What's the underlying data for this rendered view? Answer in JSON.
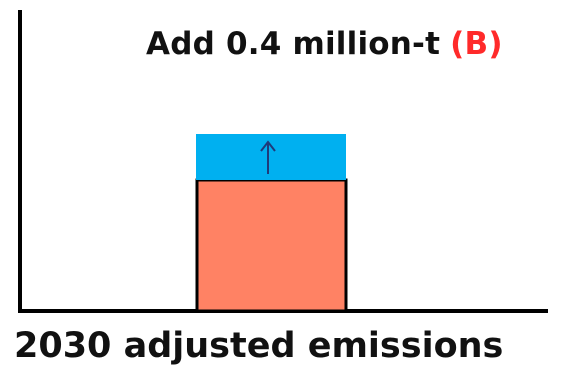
{
  "annotation": {
    "text": "Add 0.4 million-t",
    "marker": "(B)",
    "marker_color": "#ff2a2a"
  },
  "caption": "2030 adjusted emissions",
  "bars": {
    "base_color": "#ff8264",
    "addition_color": "#00b0f0",
    "arrow_icon": "arrow-up-icon",
    "arrow_color": "#1f3a7a"
  }
}
